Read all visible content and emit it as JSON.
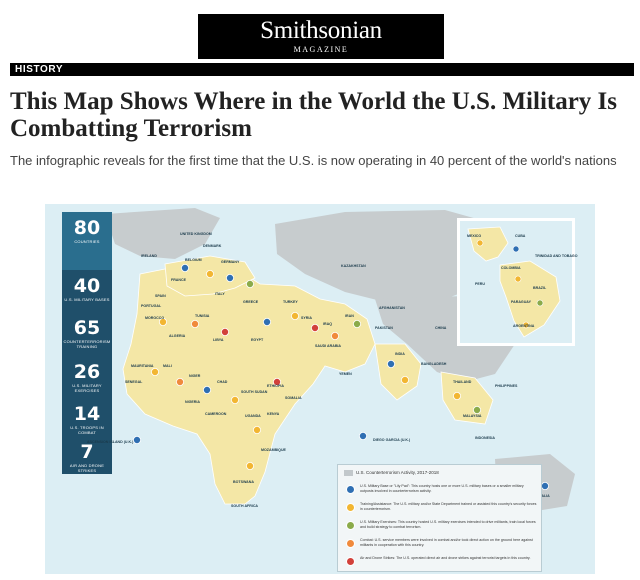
{
  "masthead": {
    "brand": "Smithsonian",
    "sub": "MAGAZINE"
  },
  "section": {
    "label": "HISTORY"
  },
  "article": {
    "title": "This Map Shows Where in the World the U.S. Military Is Combatting Terrorism",
    "dek": "The infographic reveals for the first time that the U.S. is now operating in 40 percent of the world's nations"
  },
  "map": {
    "stats": [
      {
        "num": "80",
        "cap": "COUNTRIES"
      },
      {
        "num": "40",
        "cap": "U.S. MILITARY BASES"
      },
      {
        "num": "65",
        "cap": "COUNTERTERRORISM TRAINING"
      },
      {
        "num": "26",
        "cap": "U.S. MILITARY EXERCISES"
      },
      {
        "num": "14",
        "cap": "U.S. TROOPS IN COMBAT"
      },
      {
        "num": "7",
        "cap": "AIR AND DRONE STRIKES"
      }
    ],
    "legend": {
      "title": "U.S. Counterterrorism Activity, 2017-2018",
      "rows": [
        {
          "icon": "star-icon",
          "color": "#2f6fb3",
          "text": "U.S. Military Base or \"Lily Pad\": This country hosts one or more U.S. military bases or a smaller military outposts involved in counterterrorism activity."
        },
        {
          "icon": "circle-icon",
          "color": "#f2b632",
          "text": "Training/Assistance: The U.S. military and/or State Department trained or assisted this country's security forces in counterterrorism."
        },
        {
          "icon": "slash-icon",
          "color": "#8bab4a",
          "text": "U.S. Military Exercises: This country hosted U.S. military exercises intended to drive militants, train local forces and build strategy to combat terrorism."
        },
        {
          "icon": "circle-icon",
          "color": "#f08a3c",
          "text": "Combat: U.S. service members were involved in combat and/or took direct action on the ground here against militants in cooperation with this country."
        },
        {
          "icon": "cross-icon",
          "color": "#d2413a",
          "text": "Air and Drone Strikes: The U.S. operated direct air and drone strikes against terrorist targets in this country."
        }
      ]
    },
    "labels": [
      "UNITED KINGDOM",
      "DENMARK",
      "IRELAND",
      "BELGIUM",
      "GERMANY",
      "FRANCE",
      "SPAIN",
      "PORTUGAL",
      "ITALY",
      "GREECE",
      "TUNISIA",
      "MOROCCO",
      "ALGERIA",
      "LIBYA",
      "EGYPT",
      "TURKEY",
      "SYRIA",
      "IRAQ",
      "IRAN",
      "SAUDI ARABIA",
      "YEMEN",
      "KAZAKHSTAN",
      "AFGHANISTAN",
      "PAKISTAN",
      "INDIA",
      "BANGLADESH",
      "CHINA",
      "THAILAND",
      "PHILIPPINES",
      "MALAYSIA",
      "INDONESIA",
      "AUSTRALIA",
      "MALI",
      "NIGER",
      "CHAD",
      "NIGERIA",
      "SOMALIA",
      "KENYA",
      "ETHIOPIA",
      "SOUTH SUDAN",
      "UGANDA",
      "MOZAMBIQUE",
      "BOTSWANA",
      "SOUTH AFRICA",
      "ASCENSION ISLAND (U.K.)",
      "DIEGO GARCIA (U.K.)",
      "MAURITANIA",
      "SENEGAL",
      "CAMEROON",
      "MEXICO",
      "CUBA",
      "COLOMBIA",
      "PERU",
      "BRAZIL",
      "PARAGUAY",
      "ARGENTINA",
      "TRINIDAD AND TOBAGO"
    ]
  }
}
